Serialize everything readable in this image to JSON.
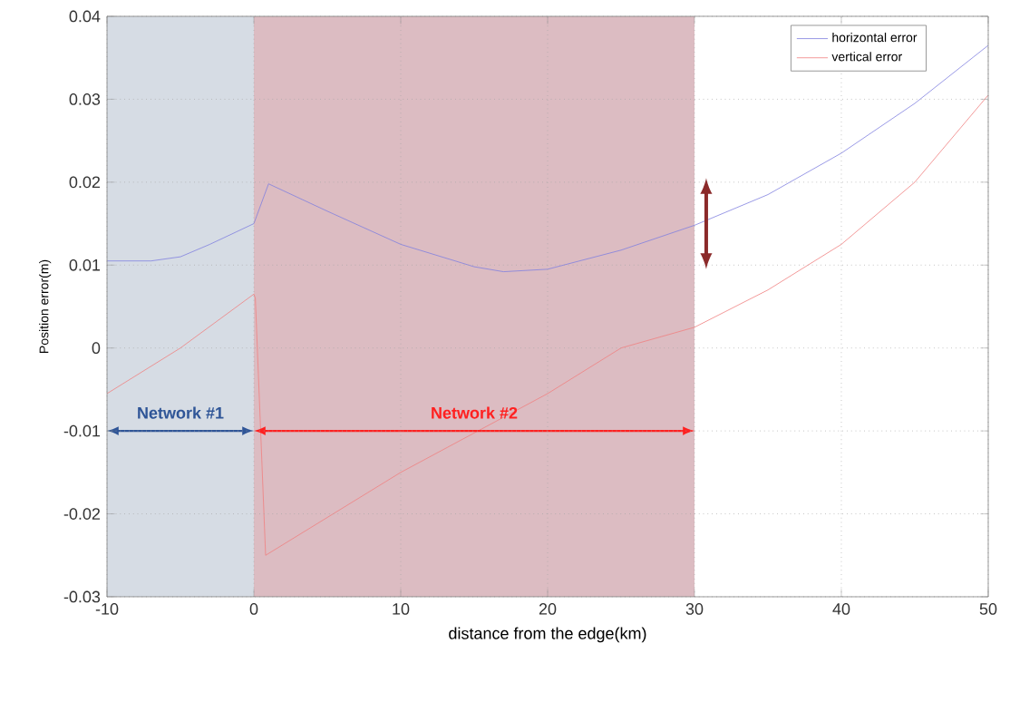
{
  "chart_data": {
    "type": "line",
    "xlabel": "distance from the edge(km)",
    "ylabel": "Position error(m)",
    "xlim": [
      -10,
      50
    ],
    "ylim": [
      -0.03,
      0.04
    ],
    "xticks": [
      -10,
      0,
      10,
      20,
      30,
      40,
      50
    ],
    "yticks": [
      -0.03,
      -0.02,
      -0.01,
      0,
      0.01,
      0.02,
      0.03,
      0.04
    ],
    "grid": true,
    "legend": "top right",
    "line_style": "solid",
    "marker": "none",
    "series": [
      {
        "name": "horizontal error",
        "color": "#8080e0",
        "x": [
          -10,
          -7,
          -5,
          -3,
          0,
          1,
          5,
          10,
          15,
          17,
          20,
          25,
          30,
          35,
          40,
          45,
          50
        ],
        "values": [
          0.0105,
          0.0105,
          0.011,
          0.0125,
          0.015,
          0.0198,
          0.0165,
          0.0125,
          0.0098,
          0.0092,
          0.0095,
          0.0118,
          0.0148,
          0.0185,
          0.0235,
          0.0295,
          0.0365
        ]
      },
      {
        "name": "vertical error",
        "color": "#f08080",
        "x": [
          -10,
          -5,
          0,
          0.1,
          0.8,
          10,
          20,
          25,
          30,
          35,
          40,
          45,
          50
        ],
        "values": [
          -0.0055,
          0.0,
          0.0065,
          0.006,
          -0.025,
          -0.015,
          -0.0055,
          0.0,
          0.0025,
          0.007,
          0.0125,
          0.02,
          0.0305
        ]
      }
    ],
    "bands": [
      {
        "axis": "x",
        "from": -10,
        "to": 0,
        "label": "Network #1",
        "color": "#d6dce4"
      },
      {
        "axis": "x",
        "from": 0,
        "to": 30,
        "label": "Network #2",
        "color": "#dcbcc2"
      }
    ]
  }
}
